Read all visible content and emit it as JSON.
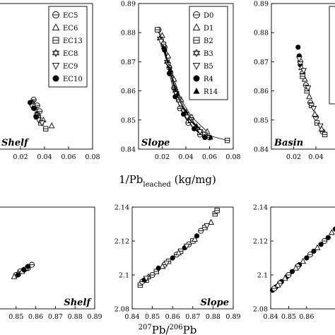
{
  "axes_text": {
    "top_xlabel_main": "1/Pb",
    "top_xlabel_sub": "leached",
    "top_xlabel_unit": " (kg/mg)",
    "bottom_xlabel_sup": "207",
    "bottom_xlabel_mid": "Pb/",
    "bottom_xlabel_sup2": "206",
    "bottom_xlabel_end": "Pb"
  },
  "chart_data": [
    {
      "type": "scatter",
      "title": "Shelf",
      "xlim": [
        0,
        0.08
      ],
      "ylim": [
        0.84,
        0.89
      ],
      "xticks": [
        "0.02",
        "0.04",
        "0.06",
        "0.08"
      ],
      "legend": [
        "EC5",
        "EC6",
        "EC13",
        "EC8",
        "EC9",
        "EC10"
      ],
      "legend_position": "top-right",
      "series": [
        {
          "name": "EC5",
          "marker": "circle-line",
          "points": [
            [
              0.031,
              0.857
            ],
            [
              0.034,
              0.855
            ],
            [
              0.036,
              0.853
            ]
          ]
        },
        {
          "name": "EC6",
          "marker": "triangle",
          "points": [
            [
              0.046,
              0.848
            ],
            [
              0.039,
              0.85
            ],
            [
              0.033,
              0.852
            ]
          ]
        },
        {
          "name": "EC13",
          "marker": "square-line",
          "points": [
            [
              0.041,
              0.847
            ],
            [
              0.037,
              0.849
            ],
            [
              0.035,
              0.851
            ]
          ]
        },
        {
          "name": "EC8",
          "marker": "star",
          "points": [
            [
              0.03,
              0.856
            ],
            [
              0.032,
              0.854
            ],
            [
              0.034,
              0.852
            ]
          ]
        },
        {
          "name": "EC9",
          "marker": "triangle-down",
          "points": [
            [
              0.029,
              0.855
            ],
            [
              0.035,
              0.85
            ],
            [
              0.038,
              0.849
            ]
          ]
        },
        {
          "name": "EC10",
          "marker": "filled-circle",
          "points": [
            [
              0.028,
              0.856
            ],
            [
              0.031,
              0.854
            ],
            [
              0.033,
              0.851
            ]
          ]
        }
      ]
    },
    {
      "type": "scatter",
      "title": "Slope",
      "xlim": [
        0,
        0.08
      ],
      "ylim": [
        0.84,
        0.89
      ],
      "xticks": [
        "0.02",
        "0.04",
        "0.06",
        "0.08"
      ],
      "yticks": [
        "0.84",
        "0.85",
        "0.86",
        "0.87",
        "0.88",
        "0.89"
      ],
      "legend": [
        "D0",
        "D1",
        "B2",
        "B3",
        "B5",
        "R4",
        "R14"
      ],
      "legend_position": "top-right",
      "connected": true,
      "series": [
        {
          "name": "D0",
          "marker": "circle-line",
          "points": [
            [
              0.017,
              0.881
            ],
            [
              0.022,
              0.875
            ],
            [
              0.026,
              0.868
            ],
            [
              0.03,
              0.861
            ],
            [
              0.035,
              0.854
            ],
            [
              0.042,
              0.849
            ],
            [
              0.052,
              0.845
            ],
            [
              0.06,
              0.844
            ]
          ]
        },
        {
          "name": "D1",
          "marker": "triangle",
          "points": [
            [
              0.02,
              0.879
            ],
            [
              0.025,
              0.872
            ],
            [
              0.03,
              0.864
            ],
            [
              0.036,
              0.857
            ],
            [
              0.045,
              0.851
            ],
            [
              0.058,
              0.846
            ]
          ]
        },
        {
          "name": "B2",
          "marker": "square-line",
          "points": [
            [
              0.016,
              0.881
            ],
            [
              0.021,
              0.876
            ],
            [
              0.027,
              0.866
            ],
            [
              0.034,
              0.857
            ],
            [
              0.044,
              0.85
            ],
            [
              0.056,
              0.845
            ],
            [
              0.075,
              0.843
            ]
          ]
        },
        {
          "name": "B3",
          "marker": "star",
          "points": [
            [
              0.018,
              0.878
            ],
            [
              0.024,
              0.87
            ],
            [
              0.031,
              0.86
            ],
            [
              0.04,
              0.852
            ],
            [
              0.05,
              0.847
            ]
          ]
        },
        {
          "name": "B5",
          "marker": "triangle-down",
          "points": [
            [
              0.019,
              0.877
            ],
            [
              0.025,
              0.869
            ],
            [
              0.032,
              0.859
            ],
            [
              0.041,
              0.851
            ],
            [
              0.052,
              0.846
            ]
          ]
        },
        {
          "name": "R4",
          "marker": "filled-circle",
          "points": [
            [
              0.022,
              0.874
            ],
            [
              0.026,
              0.866
            ],
            [
              0.031,
              0.858
            ],
            [
              0.038,
              0.852
            ],
            [
              0.047,
              0.847
            ],
            [
              0.056,
              0.844
            ]
          ]
        },
        {
          "name": "R14",
          "marker": "filled-triangle",
          "points": [
            [
              0.021,
              0.875
            ],
            [
              0.027,
              0.867
            ],
            [
              0.033,
              0.859
            ],
            [
              0.04,
              0.853
            ],
            [
              0.049,
              0.848
            ],
            [
              0.061,
              0.844
            ]
          ]
        }
      ]
    },
    {
      "type": "scatter",
      "title": "Basin",
      "xlim": [
        0,
        0.08
      ],
      "ylim": [
        0.84,
        0.89
      ],
      "xticks": [
        "0.02",
        "0.04"
      ],
      "yticks": [
        "0.84",
        "0.85",
        "0.86",
        "0.87",
        "0.88",
        "0.89"
      ],
      "series": [
        {
          "marker": "filled-circle",
          "points": [
            [
              0.024,
              0.875
            ],
            [
              0.025,
              0.872
            ],
            [
              0.026,
              0.869
            ]
          ]
        },
        {
          "marker": "circle-line",
          "points": [
            [
              0.026,
              0.87
            ],
            [
              0.028,
              0.866
            ],
            [
              0.031,
              0.862
            ],
            [
              0.035,
              0.856
            ],
            [
              0.04,
              0.851
            ],
            [
              0.046,
              0.846
            ]
          ]
        },
        {
          "marker": "triangle",
          "points": [
            [
              0.027,
              0.868
            ],
            [
              0.03,
              0.864
            ],
            [
              0.034,
              0.858
            ],
            [
              0.039,
              0.852
            ],
            [
              0.045,
              0.847
            ]
          ]
        },
        {
          "marker": "square-line",
          "points": [
            [
              0.028,
              0.865
            ],
            [
              0.032,
              0.86
            ],
            [
              0.036,
              0.855
            ],
            [
              0.041,
              0.849
            ],
            [
              0.048,
              0.845
            ]
          ]
        },
        {
          "marker": "triangle-down",
          "points": [
            [
              0.025,
              0.871
            ],
            [
              0.029,
              0.867
            ],
            [
              0.033,
              0.861
            ],
            [
              0.038,
              0.854
            ],
            [
              0.044,
              0.848
            ]
          ]
        }
      ]
    },
    {
      "type": "scatter",
      "title": "Shelf",
      "xlim": [
        0.84,
        0.89
      ],
      "ylim": [
        2.08,
        2.14
      ],
      "xticks": [
        "0.85",
        "0.86",
        "0.87",
        "0.88",
        "0.89"
      ],
      "series": [
        {
          "marker": "circle-line",
          "points": [
            [
              0.85,
              2.1
            ],
            [
              0.852,
              2.102
            ],
            [
              0.854,
              2.103
            ],
            [
              0.856,
              2.104
            ],
            [
              0.858,
              2.106
            ]
          ]
        },
        {
          "marker": "triangle",
          "points": [
            [
              0.849,
              2.099
            ],
            [
              0.851,
              2.101
            ],
            [
              0.853,
              2.102
            ],
            [
              0.855,
              2.104
            ]
          ]
        },
        {
          "marker": "filled-circle",
          "points": [
            [
              0.851,
              2.1
            ],
            [
              0.854,
              2.103
            ],
            [
              0.856,
              2.105
            ]
          ]
        }
      ]
    },
    {
      "type": "scatter",
      "title": "Slope",
      "xlim": [
        0.84,
        0.89
      ],
      "ylim": [
        2.08,
        2.14
      ],
      "xticks": [
        "0.84",
        "0.85",
        "0.86",
        "0.87",
        "0.88",
        "0.89"
      ],
      "yticks": [
        "2.08",
        "2.1",
        "2.12",
        "2.14"
      ],
      "series": [
        {
          "marker": "square-line",
          "points": [
            [
              0.844,
              2.094
            ],
            [
              0.847,
              2.097
            ],
            [
              0.852,
              2.102
            ],
            [
              0.858,
              2.108
            ],
            [
              0.864,
              2.114
            ],
            [
              0.87,
              2.12
            ],
            [
              0.876,
              2.128
            ],
            [
              0.881,
              2.136
            ],
            [
              0.882,
              2.138
            ]
          ]
        },
        {
          "marker": "circle-line",
          "points": [
            [
              0.845,
              2.096
            ],
            [
              0.85,
              2.1
            ],
            [
              0.856,
              2.106
            ],
            [
              0.862,
              2.112
            ],
            [
              0.868,
              2.118
            ],
            [
              0.874,
              2.126
            ]
          ]
        },
        {
          "marker": "filled-circle",
          "points": [
            [
              0.846,
              2.097
            ],
            [
              0.853,
              2.104
            ],
            [
              0.86,
              2.11
            ],
            [
              0.866,
              2.116
            ],
            [
              0.872,
              2.123
            ]
          ]
        },
        {
          "marker": "triangle",
          "points": [
            [
              0.848,
              2.099
            ],
            [
              0.855,
              2.105
            ],
            [
              0.863,
              2.113
            ],
            [
              0.871,
              2.121
            ],
            [
              0.879,
              2.131
            ]
          ]
        },
        {
          "marker": "triangle-down",
          "points": [
            [
              0.847,
              2.098
            ],
            [
              0.857,
              2.107
            ],
            [
              0.867,
              2.117
            ],
            [
              0.877,
              2.129
            ]
          ]
        }
      ]
    },
    {
      "type": "scatter",
      "title": "",
      "xlim": [
        0.84,
        0.89
      ],
      "ylim": [
        2.08,
        2.14
      ],
      "xticks": [
        "0.84",
        "0.85",
        "0.86"
      ],
      "yticks": [
        "2.08",
        "2.1",
        "2.12",
        "2.14"
      ],
      "series": [
        {
          "marker": "filled-circle",
          "points": [
            [
              0.841,
              2.091
            ],
            [
              0.843,
              2.093
            ],
            [
              0.846,
              2.096
            ],
            [
              0.849,
              2.099
            ],
            [
              0.852,
              2.102
            ],
            [
              0.856,
              2.106
            ],
            [
              0.86,
              2.11
            ],
            [
              0.864,
              2.114
            ],
            [
              0.868,
              2.118
            ],
            [
              0.872,
              2.122
            ],
            [
              0.876,
              2.127
            ],
            [
              0.88,
              2.131
            ]
          ]
        },
        {
          "marker": "circle-line",
          "points": [
            [
              0.842,
              2.092
            ],
            [
              0.845,
              2.095
            ],
            [
              0.85,
              2.1
            ],
            [
              0.855,
              2.105
            ],
            [
              0.862,
              2.112
            ],
            [
              0.87,
              2.12
            ],
            [
              0.878,
              2.129
            ]
          ]
        },
        {
          "marker": "triangle",
          "points": [
            [
              0.844,
              2.094
            ],
            [
              0.848,
              2.098
            ],
            [
              0.854,
              2.104
            ],
            [
              0.858,
              2.108
            ],
            [
              0.866,
              2.116
            ],
            [
              0.874,
              2.125
            ]
          ]
        }
      ]
    }
  ]
}
